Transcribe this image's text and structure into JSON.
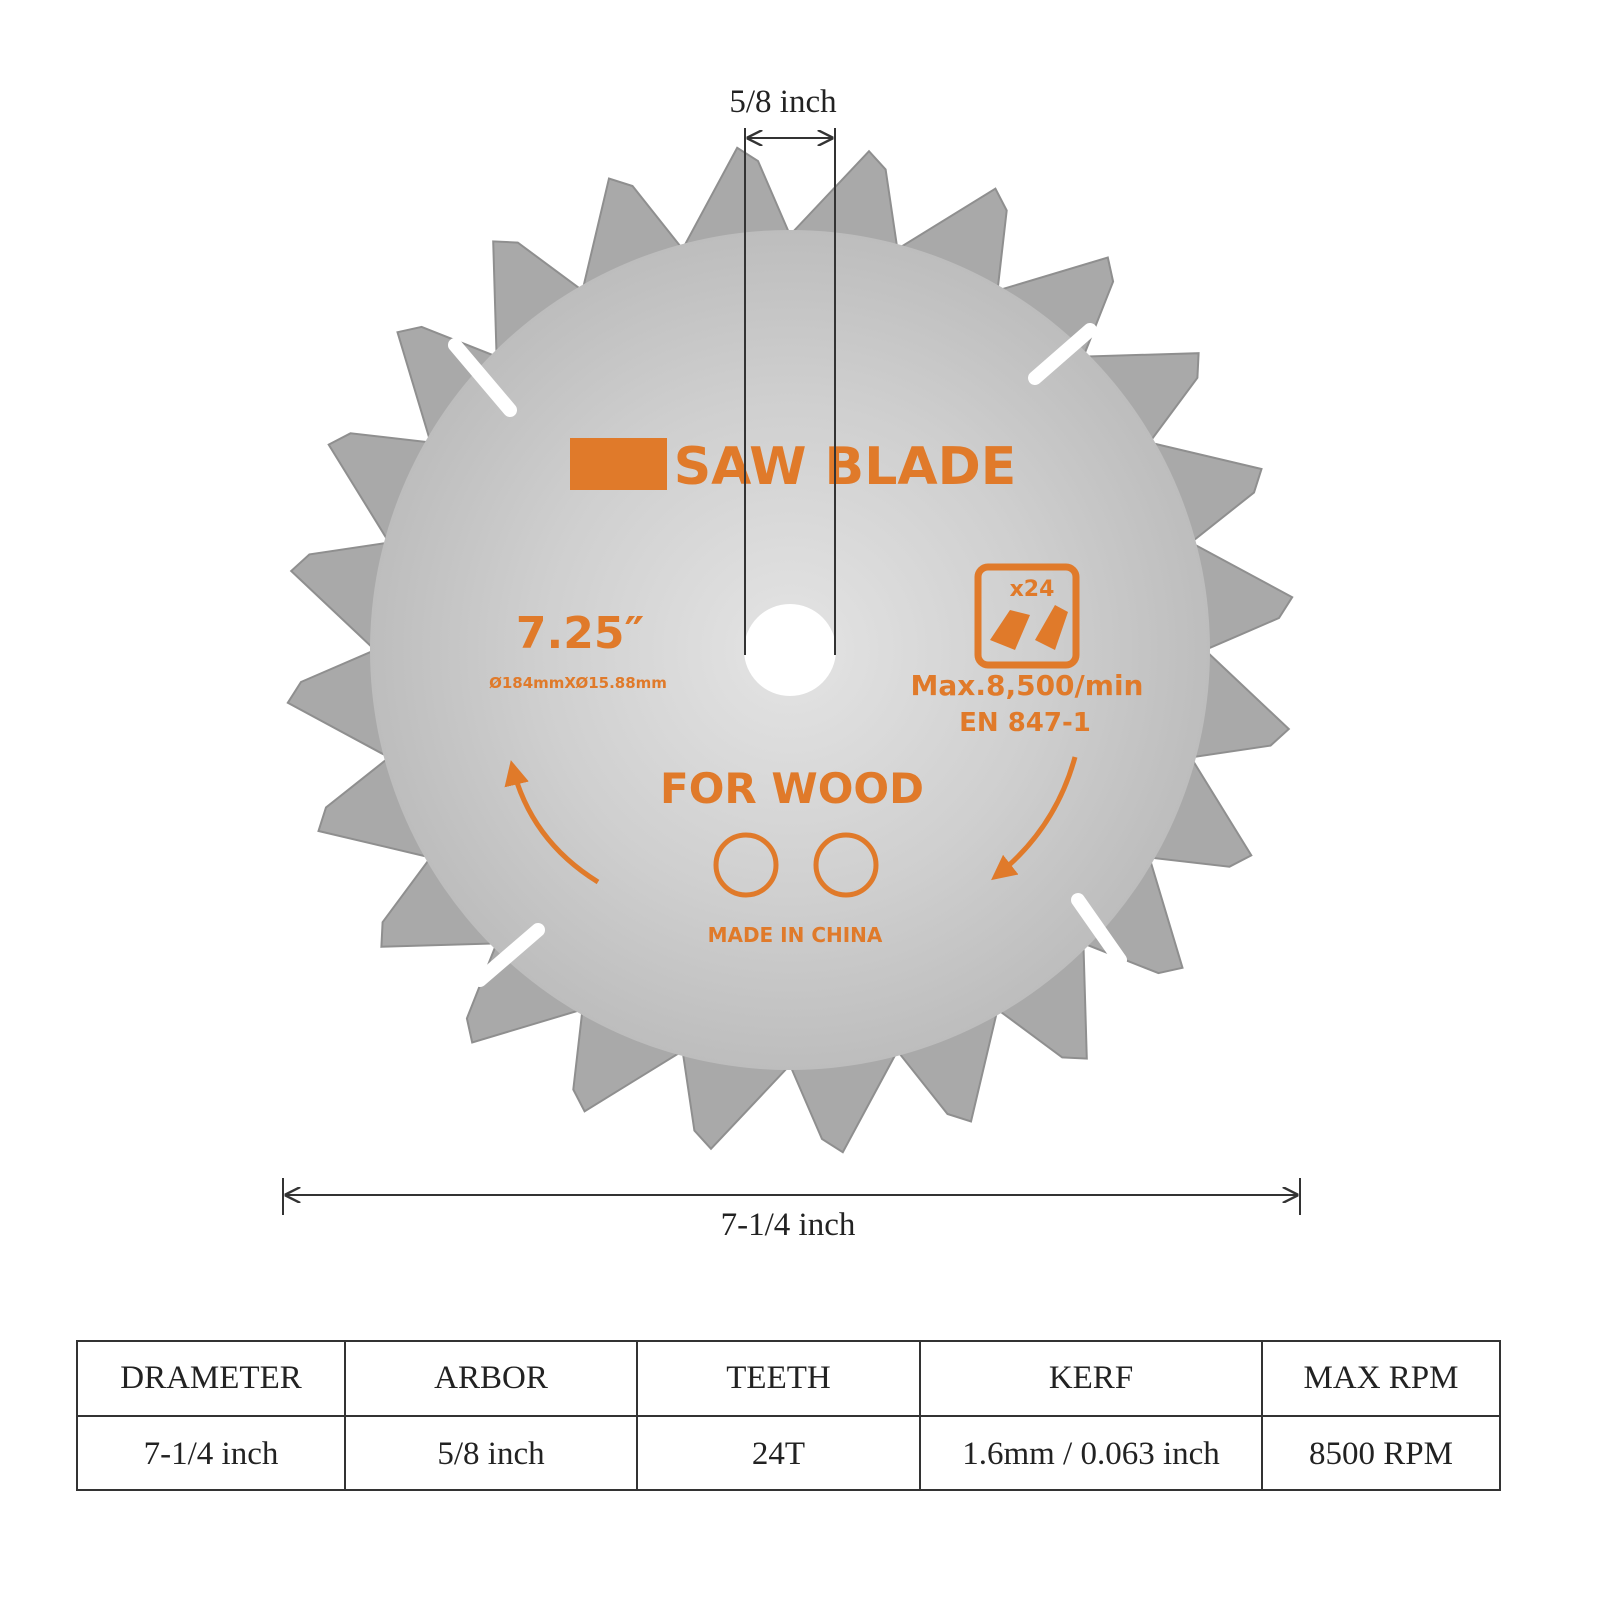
{
  "dimensions": {
    "arbor": "5/8 inch",
    "diameter": "7-1/4 inch"
  },
  "blade": {
    "title": "SAW BLADE",
    "size": "7.25″",
    "size_detail": "Ø184mmXØ15.88mm",
    "teeth_badge": "x24",
    "max_speed": "Max.8,500/min",
    "standard": "EN 847-1",
    "use": "FOR WOOD",
    "origin": "MADE IN CHINA"
  },
  "table": {
    "headers": [
      "DRAMETER",
      "ARBOR",
      "TEETH",
      "KERF",
      "MAX RPM"
    ],
    "rows": [
      [
        "7-1/4 inch",
        "5/8 inch",
        "24T",
        "1.6mm / 0.063 inch",
        "8500 RPM"
      ]
    ]
  }
}
